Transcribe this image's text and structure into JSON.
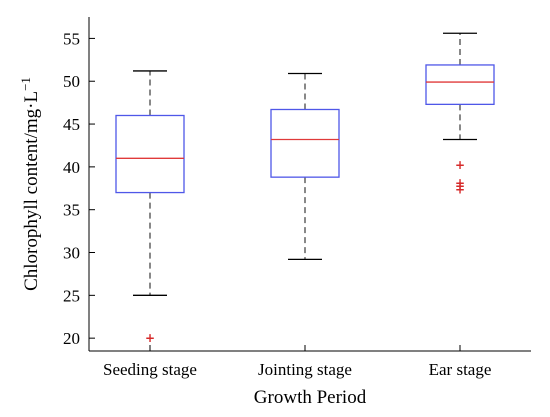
{
  "chart_data": {
    "type": "box",
    "xlabel": "Growth Period",
    "ylabel_main": "Chlorophyll content/mg·L",
    "ylabel_sup": "−1",
    "ylim": [
      18.5,
      57.5
    ],
    "yticks": [
      20,
      25,
      30,
      35,
      40,
      45,
      50,
      55
    ],
    "grid": false,
    "colors": {
      "box": "#4f57e8",
      "median": "#e03a3a",
      "outlier": "#d62a2a",
      "whisker": "#3a3a3a",
      "axis": "#000000"
    },
    "categories": [
      "Seeding stage",
      "Jointing stage",
      "Ear stage"
    ],
    "boxes": [
      {
        "category": "Seeding stage",
        "min": 25.0,
        "q1": 37.0,
        "median": 41.0,
        "q3": 46.0,
        "max": 51.2,
        "outliers": [
          20.1
        ]
      },
      {
        "category": "Jointing stage",
        "min": 29.2,
        "q1": 38.8,
        "median": 43.2,
        "q3": 46.7,
        "max": 50.9,
        "outliers": []
      },
      {
        "category": "Ear stage",
        "min": 43.2,
        "q1": 47.3,
        "median": 49.9,
        "q3": 51.9,
        "max": 55.6,
        "outliers": [
          40.3,
          38.2,
          37.8,
          37.4
        ]
      }
    ]
  }
}
